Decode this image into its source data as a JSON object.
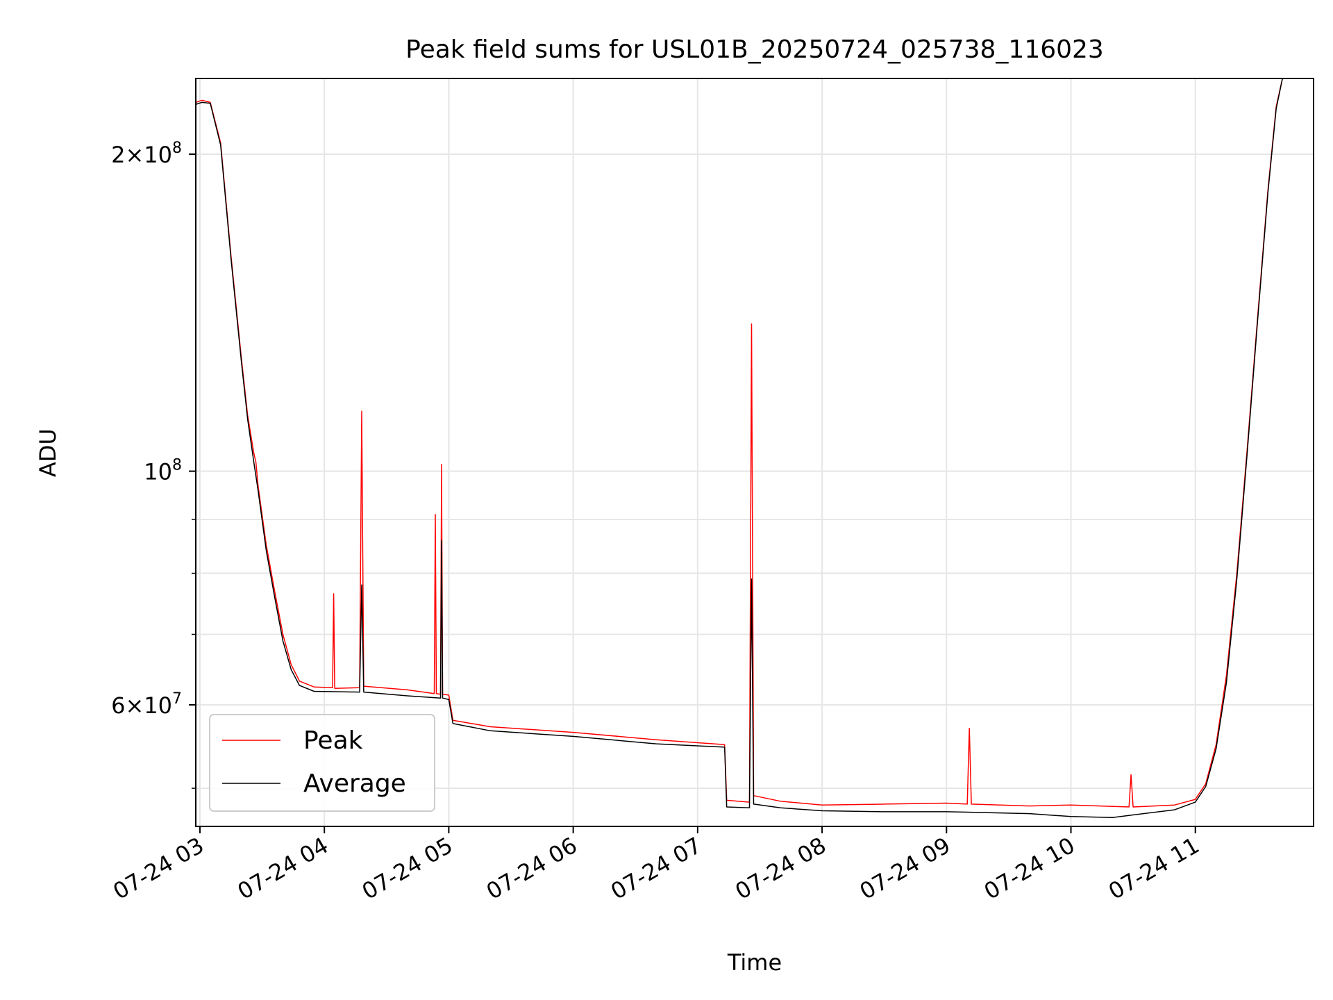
{
  "chart_data": {
    "type": "line",
    "title": "Peak field sums for USL01B_20250724_025738_116023",
    "xlabel": "Time",
    "ylabel": "ADU",
    "x_axis": {
      "type": "datetime",
      "range": [
        "2025-07-24T02:58:00",
        "2025-07-24T11:57:00"
      ]
    },
    "y_axis": {
      "scale": "log",
      "range": [
        46000000,
        236000000
      ]
    },
    "x_ticks": [
      {
        "value": "2025-07-24T03:00",
        "label": "07-24 03"
      },
      {
        "value": "2025-07-24T04:00",
        "label": "07-24 04"
      },
      {
        "value": "2025-07-24T05:00",
        "label": "07-24 05"
      },
      {
        "value": "2025-07-24T06:00",
        "label": "07-24 06"
      },
      {
        "value": "2025-07-24T07:00",
        "label": "07-24 07"
      },
      {
        "value": "2025-07-24T08:00",
        "label": "07-24 08"
      },
      {
        "value": "2025-07-24T09:00",
        "label": "07-24 09"
      },
      {
        "value": "2025-07-24T10:00",
        "label": "07-24 10"
      },
      {
        "value": "2025-07-24T11:00",
        "label": "07-24 11"
      }
    ],
    "y_major_ticks": [
      {
        "value": 60000000,
        "base": "6×10",
        "exp": "7"
      },
      {
        "value": 100000000,
        "base": "10",
        "exp": "8"
      },
      {
        "value": 200000000,
        "base": "2×10",
        "exp": "8"
      }
    ],
    "y_minor_ticks": [
      50000000,
      70000000,
      80000000,
      90000000
    ],
    "grid": true,
    "legend": {
      "position": "lower-left",
      "entries": [
        "Peak",
        "Average"
      ]
    },
    "colors": {
      "Peak": "#ff0000",
      "Average": "#000000"
    },
    "series": [
      {
        "name": "Peak",
        "color": "#ff0000",
        "points": [
          [
            "2025-07-24T02:58:00",
            224000000
          ],
          [
            "2025-07-24T03:01:00",
            225000000
          ],
          [
            "2025-07-24T03:05:00",
            224000000
          ],
          [
            "2025-07-24T03:10:00",
            205000000
          ],
          [
            "2025-07-24T03:15:00",
            160000000
          ],
          [
            "2025-07-24T03:20:00",
            128000000
          ],
          [
            "2025-07-24T03:23:00",
            113000000
          ],
          [
            "2025-07-24T03:26:00",
            104000000
          ],
          [
            "2025-07-24T03:27:00",
            102000000
          ],
          [
            "2025-07-24T03:28:00",
            97000000
          ],
          [
            "2025-07-24T03:32:00",
            85000000
          ],
          [
            "2025-07-24T03:36:00",
            77000000
          ],
          [
            "2025-07-24T03:40:00",
            70000000
          ],
          [
            "2025-07-24T03:44:00",
            65500000
          ],
          [
            "2025-07-24T03:48:00",
            63200000
          ],
          [
            "2025-07-24T03:55:00",
            62400000
          ],
          [
            "2025-07-24T04:04:00",
            62300000
          ],
          [
            "2025-07-24T04:04:30",
            76500000
          ],
          [
            "2025-07-24T04:05:00",
            62200000
          ],
          [
            "2025-07-24T04:17:00",
            62300000
          ],
          [
            "2025-07-24T04:18:00",
            114000000
          ],
          [
            "2025-07-24T04:19:00",
            62500000
          ],
          [
            "2025-07-24T04:40:00",
            62000000
          ],
          [
            "2025-07-24T04:53:00",
            61500000
          ],
          [
            "2025-07-24T04:53:30",
            91000000
          ],
          [
            "2025-07-24T04:54:00",
            61500000
          ],
          [
            "2025-07-24T04:56:00",
            61400000
          ],
          [
            "2025-07-24T04:56:30",
            101500000
          ],
          [
            "2025-07-24T04:57:00",
            61400000
          ],
          [
            "2025-07-24T05:00:00",
            61300000
          ],
          [
            "2025-07-24T05:02:00",
            58000000
          ],
          [
            "2025-07-24T05:20:00",
            57200000
          ],
          [
            "2025-07-24T06:00:00",
            56500000
          ],
          [
            "2025-07-24T06:40:00",
            55600000
          ],
          [
            "2025-07-24T07:13:00",
            55000000
          ],
          [
            "2025-07-24T07:14:00",
            48700000
          ],
          [
            "2025-07-24T07:25:00",
            48500000
          ],
          [
            "2025-07-24T07:26:00",
            138000000
          ],
          [
            "2025-07-24T07:27:00",
            49200000
          ],
          [
            "2025-07-24T07:40:00",
            48600000
          ],
          [
            "2025-07-24T08:00:00",
            48200000
          ],
          [
            "2025-07-24T08:30:00",
            48300000
          ],
          [
            "2025-07-24T09:00:00",
            48400000
          ],
          [
            "2025-07-24T09:10:00",
            48300000
          ],
          [
            "2025-07-24T09:11:00",
            57000000
          ],
          [
            "2025-07-24T09:12:00",
            48300000
          ],
          [
            "2025-07-24T09:40:00",
            48100000
          ],
          [
            "2025-07-24T10:00:00",
            48200000
          ],
          [
            "2025-07-24T10:28:00",
            48000000
          ],
          [
            "2025-07-24T10:29:00",
            51500000
          ],
          [
            "2025-07-24T10:30:00",
            48000000
          ],
          [
            "2025-07-24T10:50:00",
            48200000
          ],
          [
            "2025-07-24T11:00:00",
            48800000
          ],
          [
            "2025-07-24T11:05:00",
            50500000
          ],
          [
            "2025-07-24T11:10:00",
            55000000
          ],
          [
            "2025-07-24T11:15:00",
            64000000
          ],
          [
            "2025-07-24T11:20:00",
            80000000
          ],
          [
            "2025-07-24T11:25:00",
            105000000
          ],
          [
            "2025-07-24T11:30:00",
            140000000
          ],
          [
            "2025-07-24T11:35:00",
            185000000
          ],
          [
            "2025-07-24T11:39:00",
            222000000
          ],
          [
            "2025-07-24T11:42:00",
            236000000
          ]
        ]
      },
      {
        "name": "Average",
        "color": "#000000",
        "points": [
          [
            "2025-07-24T02:58:00",
            223000000
          ],
          [
            "2025-07-24T03:01:00",
            224000000
          ],
          [
            "2025-07-24T03:05:00",
            223500000
          ],
          [
            "2025-07-24T03:10:00",
            204000000
          ],
          [
            "2025-07-24T03:15:00",
            159000000
          ],
          [
            "2025-07-24T03:20:00",
            127000000
          ],
          [
            "2025-07-24T03:23:00",
            112000000
          ],
          [
            "2025-07-24T03:26:00",
            102000000
          ],
          [
            "2025-07-24T03:28:00",
            96000000
          ],
          [
            "2025-07-24T03:32:00",
            84000000
          ],
          [
            "2025-07-24T03:36:00",
            76000000
          ],
          [
            "2025-07-24T03:40:00",
            69000000
          ],
          [
            "2025-07-24T03:44:00",
            64800000
          ],
          [
            "2025-07-24T03:48:00",
            62600000
          ],
          [
            "2025-07-24T03:55:00",
            61800000
          ],
          [
            "2025-07-24T04:17:00",
            61700000
          ],
          [
            "2025-07-24T04:18:00",
            78000000
          ],
          [
            "2025-07-24T04:19:00",
            61700000
          ],
          [
            "2025-07-24T04:40:00",
            61200000
          ],
          [
            "2025-07-24T04:56:00",
            60900000
          ],
          [
            "2025-07-24T04:56:30",
            86000000
          ],
          [
            "2025-07-24T04:57:00",
            60900000
          ],
          [
            "2025-07-24T05:00:00",
            60700000
          ],
          [
            "2025-07-24T05:02:00",
            57600000
          ],
          [
            "2025-07-24T05:20:00",
            56700000
          ],
          [
            "2025-07-24T06:00:00",
            56000000
          ],
          [
            "2025-07-24T06:40:00",
            55100000
          ],
          [
            "2025-07-24T07:13:00",
            54700000
          ],
          [
            "2025-07-24T07:14:00",
            48000000
          ],
          [
            "2025-07-24T07:25:00",
            47900000
          ],
          [
            "2025-07-24T07:26:00",
            79000000
          ],
          [
            "2025-07-24T07:27:00",
            48300000
          ],
          [
            "2025-07-24T07:40:00",
            47900000
          ],
          [
            "2025-07-24T08:00:00",
            47600000
          ],
          [
            "2025-07-24T08:30:00",
            47500000
          ],
          [
            "2025-07-24T09:00:00",
            47500000
          ],
          [
            "2025-07-24T09:40:00",
            47300000
          ],
          [
            "2025-07-24T10:00:00",
            47000000
          ],
          [
            "2025-07-24T10:20:00",
            46900000
          ],
          [
            "2025-07-24T10:50:00",
            47700000
          ],
          [
            "2025-07-24T11:00:00",
            48500000
          ],
          [
            "2025-07-24T11:05:00",
            50200000
          ],
          [
            "2025-07-24T11:10:00",
            54500000
          ],
          [
            "2025-07-24T11:15:00",
            63000000
          ],
          [
            "2025-07-24T11:20:00",
            79000000
          ],
          [
            "2025-07-24T11:25:00",
            104000000
          ],
          [
            "2025-07-24T11:30:00",
            139000000
          ],
          [
            "2025-07-24T11:35:00",
            184000000
          ],
          [
            "2025-07-24T11:39:00",
            221000000
          ],
          [
            "2025-07-24T11:42:00",
            236000000
          ]
        ]
      }
    ]
  }
}
